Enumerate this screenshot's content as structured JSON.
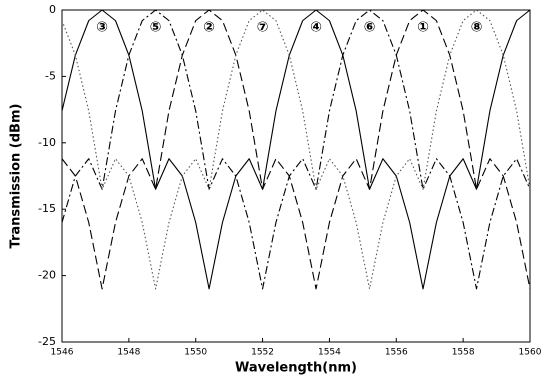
{
  "chart_data": {
    "type": "line",
    "xlabel": "Wavelength(nm)",
    "ylabel": "Transmission (dBm)",
    "x": [
      1546.0,
      1546.4,
      1546.8,
      1547.2,
      1547.6,
      1548.0,
      1548.4,
      1548.8,
      1549.2,
      1549.6,
      1550.0,
      1550.4,
      1550.8,
      1551.2,
      1551.6,
      1552.0,
      1552.4,
      1552.8,
      1553.2,
      1553.6,
      1554.0,
      1554.4,
      1554.8,
      1555.2,
      1555.6,
      1556.0,
      1556.4,
      1556.8,
      1557.2,
      1557.6,
      1558.0,
      1558.4,
      1558.8,
      1559.2,
      1559.6,
      1560.0
    ],
    "series": [
      {
        "color": "#000000",
        "dash": "solid",
        "values": [
          -7.6,
          -3.4,
          -0.8,
          0,
          -0.8,
          -3.4,
          -7.6,
          -13.5,
          -11.2,
          -12.5,
          -16,
          -21,
          -16,
          -12.5,
          -11.2,
          -13.5,
          -7.6,
          -3.4,
          -0.8,
          0,
          -0.8,
          -3.4,
          -7.6,
          -13.5,
          -11.2,
          -12.5,
          -16,
          -21,
          -16,
          -12.5,
          -11.2,
          -13.5,
          -7.6,
          -3.4,
          -0.8,
          0
        ]
      },
      {
        "color": "#000000",
        "dash": "dashdot",
        "values": [
          -16,
          -12.5,
          -11.2,
          -13.5,
          -7.6,
          -3.4,
          -0.8,
          0,
          -0.8,
          -3.4,
          -7.6,
          -13.5,
          -11.2,
          -12.5,
          -16,
          -21,
          -16,
          -12.5,
          -11.2,
          -13.5,
          -7.6,
          -3.4,
          -0.8,
          0,
          -0.8,
          -3.4,
          -7.6,
          -13.5,
          -11.2,
          -12.5,
          -16,
          -21,
          -16,
          -12.5,
          -11.2,
          -13.5
        ]
      },
      {
        "color": "#000000",
        "dash": "dashed",
        "values": [
          -11.2,
          -12.5,
          -16,
          -21,
          -16,
          -12.5,
          -11.2,
          -13.5,
          -7.6,
          -3.4,
          -0.8,
          0,
          -0.8,
          -3.4,
          -7.6,
          -13.5,
          -11.2,
          -12.5,
          -16,
          -21,
          -16,
          -12.5,
          -11.2,
          -13.5,
          -7.6,
          -3.4,
          -0.8,
          0,
          -0.8,
          -3.4,
          -7.6,
          -13.5,
          -11.2,
          -12.5,
          -16,
          -21
        ]
      },
      {
        "color": "#555555",
        "dash": "dotted",
        "values": [
          -0.8,
          -3.4,
          -7.6,
          -13.5,
          -11.2,
          -12.5,
          -16,
          -21,
          -16,
          -12.5,
          -11.2,
          -13.5,
          -7.6,
          -3.4,
          -0.8,
          0,
          -0.8,
          -3.4,
          -7.6,
          -13.5,
          -11.2,
          -12.5,
          -16,
          -21,
          -16,
          -12.5,
          -11.2,
          -13.5,
          -7.6,
          -3.4,
          -0.8,
          0,
          -0.8,
          -3.4,
          -7.6,
          -13.5
        ]
      }
    ],
    "annotations": [
      {
        "text": "③",
        "x": 1547.2,
        "y": -1.3
      },
      {
        "text": "⑤",
        "x": 1548.8,
        "y": -1.3
      },
      {
        "text": "②",
        "x": 1550.4,
        "y": -1.3
      },
      {
        "text": "⑦",
        "x": 1552.0,
        "y": -1.3
      },
      {
        "text": "④",
        "x": 1553.6,
        "y": -1.3
      },
      {
        "text": "⑥",
        "x": 1555.2,
        "y": -1.3
      },
      {
        "text": "①",
        "x": 1556.8,
        "y": -1.3
      },
      {
        "text": "⑧",
        "x": 1558.4,
        "y": -1.3
      }
    ],
    "xlim": [
      1546,
      1560
    ],
    "xticks": [
      1546,
      1548,
      1550,
      1552,
      1554,
      1556,
      1558,
      1560
    ],
    "ylim": [
      -25,
      0
    ],
    "yticks": [
      0,
      -5,
      -10,
      -15,
      -20,
      -25
    ]
  }
}
